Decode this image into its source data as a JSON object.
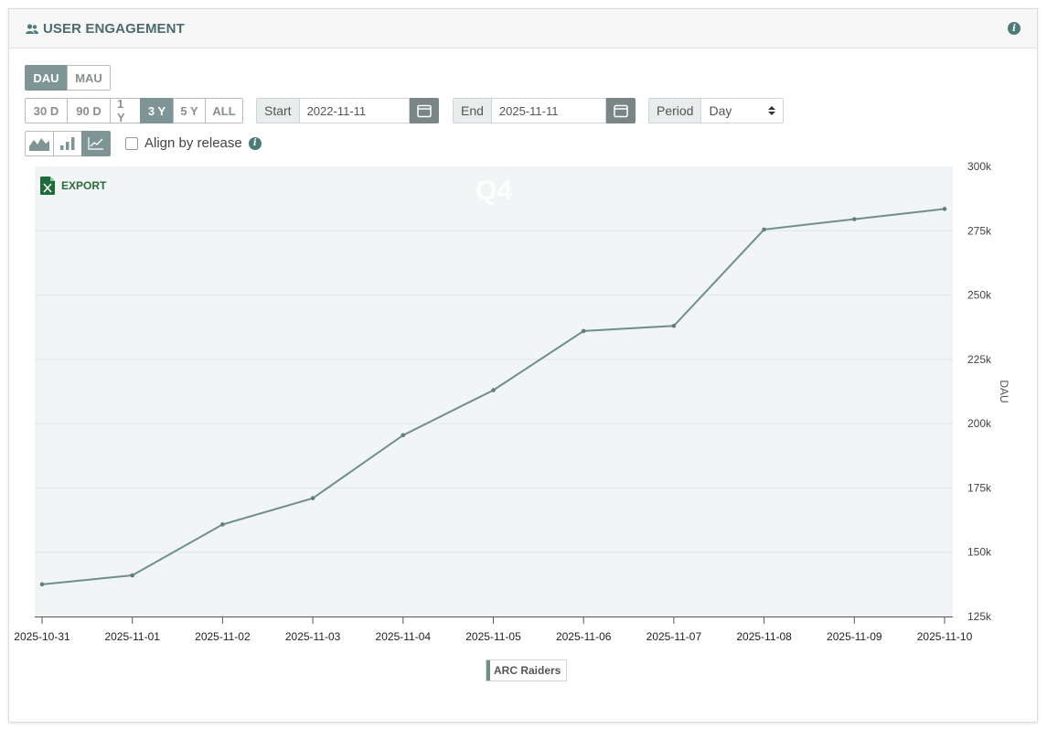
{
  "header": {
    "title": "USER ENGAGEMENT"
  },
  "metric_toggle": [
    {
      "label": "DAU",
      "active": true
    },
    {
      "label": "MAU",
      "active": false
    }
  ],
  "ranges": [
    {
      "label": "30 D",
      "active": false
    },
    {
      "label": "90 D",
      "active": false
    },
    {
      "label": "1 Y",
      "active": false
    },
    {
      "label": "3 Y",
      "active": true
    },
    {
      "label": "5 Y",
      "active": false
    },
    {
      "label": "ALL",
      "active": false
    }
  ],
  "start": {
    "label": "Start",
    "value": "2022-11-11"
  },
  "end": {
    "label": "End",
    "value": "2025-11-11"
  },
  "period": {
    "label": "Period",
    "value": "Day"
  },
  "align": {
    "label": "Align by release",
    "checked": false
  },
  "export_label": "EXPORT",
  "watermark": "Q4",
  "colors": {
    "accent": "#7f9494",
    "line": "#6f8f88",
    "plot_bg": "#f1f5f5",
    "excel": "#1e6b3a"
  },
  "chart_data": {
    "type": "line",
    "x": [
      "2025-10-31",
      "2025-11-01",
      "2025-11-02",
      "2025-11-03",
      "2025-11-04",
      "2025-11-05",
      "2025-11-06",
      "2025-11-07",
      "2025-11-08",
      "2025-11-09",
      "2025-11-10"
    ],
    "series": [
      {
        "name": "ARC Raiders",
        "values": [
          137500,
          141000,
          160800,
          171000,
          195500,
          213000,
          236000,
          238000,
          275500,
          279500,
          283500
        ]
      }
    ],
    "ylabel": "DAU",
    "ylim": [
      125000,
      300000
    ],
    "yticks": [
      125000,
      150000,
      175000,
      200000,
      225000,
      250000,
      275000,
      300000
    ],
    "ytick_labels": [
      "125k",
      "150k",
      "175k",
      "200k",
      "225k",
      "250k",
      "275k",
      "300k"
    ],
    "y_axis_side": "right",
    "grid": true,
    "legend": "bottom-center"
  }
}
